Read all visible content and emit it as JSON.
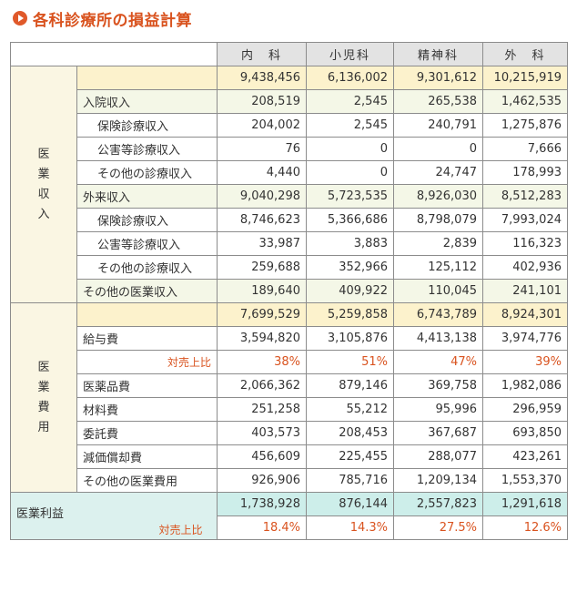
{
  "title": "各科診療所の損益計算",
  "columns": [
    "内　科",
    "小児科",
    "精神科",
    "外　科"
  ],
  "revenue": {
    "section_label": "医業収入",
    "total": [
      "9,438,456",
      "6,136,002",
      "9,301,612",
      "10,215,919"
    ],
    "rows": [
      {
        "label": "入院収入",
        "values": [
          "208,519",
          "2,545",
          "265,538",
          "1,462,535"
        ],
        "level": 1
      },
      {
        "label": "保険診療収入",
        "values": [
          "204,002",
          "2,545",
          "240,791",
          "1,275,876"
        ],
        "level": 2
      },
      {
        "label": "公害等診療収入",
        "values": [
          "76",
          "0",
          "0",
          "7,666"
        ],
        "level": 2
      },
      {
        "label": "その他の診療収入",
        "values": [
          "4,440",
          "0",
          "24,747",
          "178,993"
        ],
        "level": 2
      },
      {
        "label": "外来収入",
        "values": [
          "9,040,298",
          "5,723,535",
          "8,926,030",
          "8,512,283"
        ],
        "level": 1
      },
      {
        "label": "保険診療収入",
        "values": [
          "8,746,623",
          "5,366,686",
          "8,798,079",
          "7,993,024"
        ],
        "level": 2
      },
      {
        "label": "公害等診療収入",
        "values": [
          "33,987",
          "3,883",
          "2,839",
          "116,323"
        ],
        "level": 2
      },
      {
        "label": "その他の診療収入",
        "values": [
          "259,688",
          "352,966",
          "125,112",
          "402,936"
        ],
        "level": 2
      },
      {
        "label": "その他の医業収入",
        "values": [
          "189,640",
          "409,922",
          "110,045",
          "241,101"
        ],
        "level": 1
      }
    ]
  },
  "expenses": {
    "section_label": "医業費用",
    "total": [
      "7,699,529",
      "5,259,858",
      "6,743,789",
      "8,924,301"
    ],
    "salary": {
      "label": "給与費",
      "values": [
        "3,594,820",
        "3,105,876",
        "4,413,138",
        "3,974,776"
      ]
    },
    "salary_ratio": {
      "label": "対売上比",
      "values": [
        "38%",
        "51%",
        "47%",
        "39%"
      ]
    },
    "rows": [
      {
        "label": "医薬品費",
        "values": [
          "2,066,362",
          "879,146",
          "369,758",
          "1,982,086"
        ]
      },
      {
        "label": "材料費",
        "values": [
          "251,258",
          "55,212",
          "95,996",
          "296,959"
        ]
      },
      {
        "label": "委託費",
        "values": [
          "403,573",
          "208,453",
          "367,687",
          "693,850"
        ]
      },
      {
        "label": "減価償却費",
        "values": [
          "456,609",
          "225,455",
          "288,077",
          "423,261"
        ]
      },
      {
        "label": "その他の医業費用",
        "values": [
          "926,906",
          "785,716",
          "1,209,134",
          "1,553,370"
        ]
      }
    ]
  },
  "profit": {
    "section_label": "医業利益",
    "values": [
      "1,738,928",
      "876,144",
      "2,557,823",
      "1,291,618"
    ],
    "ratio": {
      "label": "対売上比",
      "values": [
        "18.4%",
        "14.3%",
        "27.5%",
        "12.6%"
      ]
    }
  }
}
